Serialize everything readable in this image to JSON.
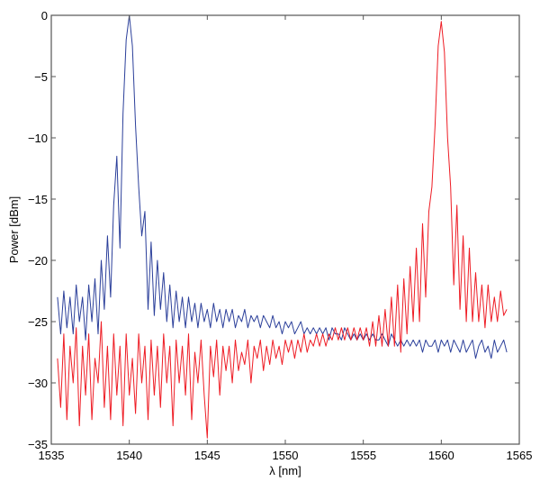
{
  "chart_data": {
    "type": "line",
    "title": "",
    "xlabel": "λ [nm]",
    "ylabel": "Power [dBm]",
    "xlim": [
      1535,
      1565
    ],
    "ylim": [
      -35,
      0
    ],
    "xticks": [
      1535,
      1540,
      1545,
      1550,
      1555,
      1560,
      1565
    ],
    "yticks": [
      0,
      -5,
      -10,
      -15,
      -20,
      -25,
      -30,
      -35
    ],
    "grid": false,
    "legend": "none",
    "series": [
      {
        "color": "#2b3f9a",
        "x_start": 1535.4,
        "x_step": 0.2,
        "y": [
          -23,
          -26,
          -22.5,
          -25.5,
          -23,
          -26,
          -22,
          -25,
          -23,
          -26.5,
          -22,
          -25,
          -21.5,
          -26,
          -20,
          -24,
          -18,
          -23,
          -15.5,
          -11.5,
          -19,
          -8,
          -2,
          0,
          -2.5,
          -9,
          -14,
          -18,
          -16,
          -24,
          -18.5,
          -24.5,
          -20,
          -24,
          -21,
          -25,
          -22,
          -25.5,
          -22.5,
          -25,
          -23,
          -25.5,
          -23,
          -25,
          -23.5,
          -25.5,
          -23.5,
          -25,
          -24,
          -25.5,
          -23.5,
          -25,
          -24,
          -25.5,
          -24,
          -25,
          -24,
          -25.5,
          -24.5,
          -25,
          -24,
          -25.5,
          -24.5,
          -25,
          -24.5,
          -25.5,
          -24.5,
          -25,
          -25.5,
          -24.5,
          -25.5,
          -25,
          -26,
          -25,
          -25.5,
          -25,
          -26,
          -25.5,
          -25,
          -26,
          -25.5,
          -26,
          -25.5,
          -26,
          -25.5,
          -26,
          -25.5,
          -26.5,
          -25.5,
          -26,
          -26,
          -26.5,
          -25.5,
          -26,
          -26.5,
          -26,
          -26.5,
          -26,
          -26.5,
          -26,
          -26.5,
          -26,
          -26.5,
          -26.5,
          -26,
          -26.5,
          -27,
          -26,
          -26.5,
          -27,
          -26.5,
          -27,
          -26.5,
          -27,
          -26.5,
          -27,
          -26.5,
          -27.5,
          -26.5,
          -27,
          -27,
          -26.5,
          -27.5,
          -26.5,
          -27,
          -26.5,
          -27.5,
          -26.5,
          -27,
          -27.5,
          -26.5,
          -27.5,
          -27,
          -26.5,
          -28,
          -27,
          -26.5,
          -27.5,
          -27,
          -28,
          -26.5,
          -27.5,
          -27,
          -26.5,
          -27.5
        ]
      },
      {
        "color": "#ee1c24",
        "x_start": 1535.4,
        "x_step": 0.2,
        "y": [
          -28,
          -32,
          -26,
          -33,
          -27,
          -30,
          -25.5,
          -33.5,
          -27,
          -31,
          -26,
          -33,
          -28,
          -30,
          -25,
          -32,
          -27,
          -33,
          -26,
          -31,
          -27,
          -33.5,
          -26,
          -31,
          -28,
          -32.5,
          -26,
          -30,
          -27,
          -33,
          -26.5,
          -31,
          -27,
          -32,
          -26,
          -30,
          -27,
          -33.5,
          -26.5,
          -30,
          -27,
          -31,
          -26,
          -33,
          -27.5,
          -30,
          -26.5,
          -31,
          -34.5,
          -27,
          -29.5,
          -26.5,
          -31,
          -27,
          -29,
          -27,
          -30,
          -26.5,
          -29,
          -27.5,
          -28.5,
          -26.5,
          -30,
          -27,
          -28,
          -26.5,
          -29,
          -27,
          -28.5,
          -26.5,
          -28,
          -27,
          -28.5,
          -26.5,
          -27.5,
          -26.5,
          -28,
          -26.5,
          -27.5,
          -26,
          -27.5,
          -26.5,
          -27,
          -26,
          -27,
          -26,
          -27,
          -26,
          -26.5,
          -25.5,
          -26.5,
          -25.5,
          -26.5,
          -25.5,
          -26.5,
          -25.5,
          -26.5,
          -25.5,
          -26.5,
          -25.5,
          -27,
          -25,
          -27,
          -24.5,
          -27,
          -24,
          -27,
          -23,
          -27,
          -22,
          -27.5,
          -21.5,
          -26,
          -20.5,
          -25,
          -19,
          -25,
          -17,
          -23,
          -16,
          -14,
          -9,
          -2.5,
          -0.5,
          -3,
          -10,
          -14,
          -22,
          -15.5,
          -24,
          -18,
          -25,
          -19,
          -25,
          -21,
          -25,
          -22,
          -25.5,
          -22,
          -25,
          -23,
          -25,
          -22.5,
          -24.5,
          -24
        ]
      }
    ]
  }
}
